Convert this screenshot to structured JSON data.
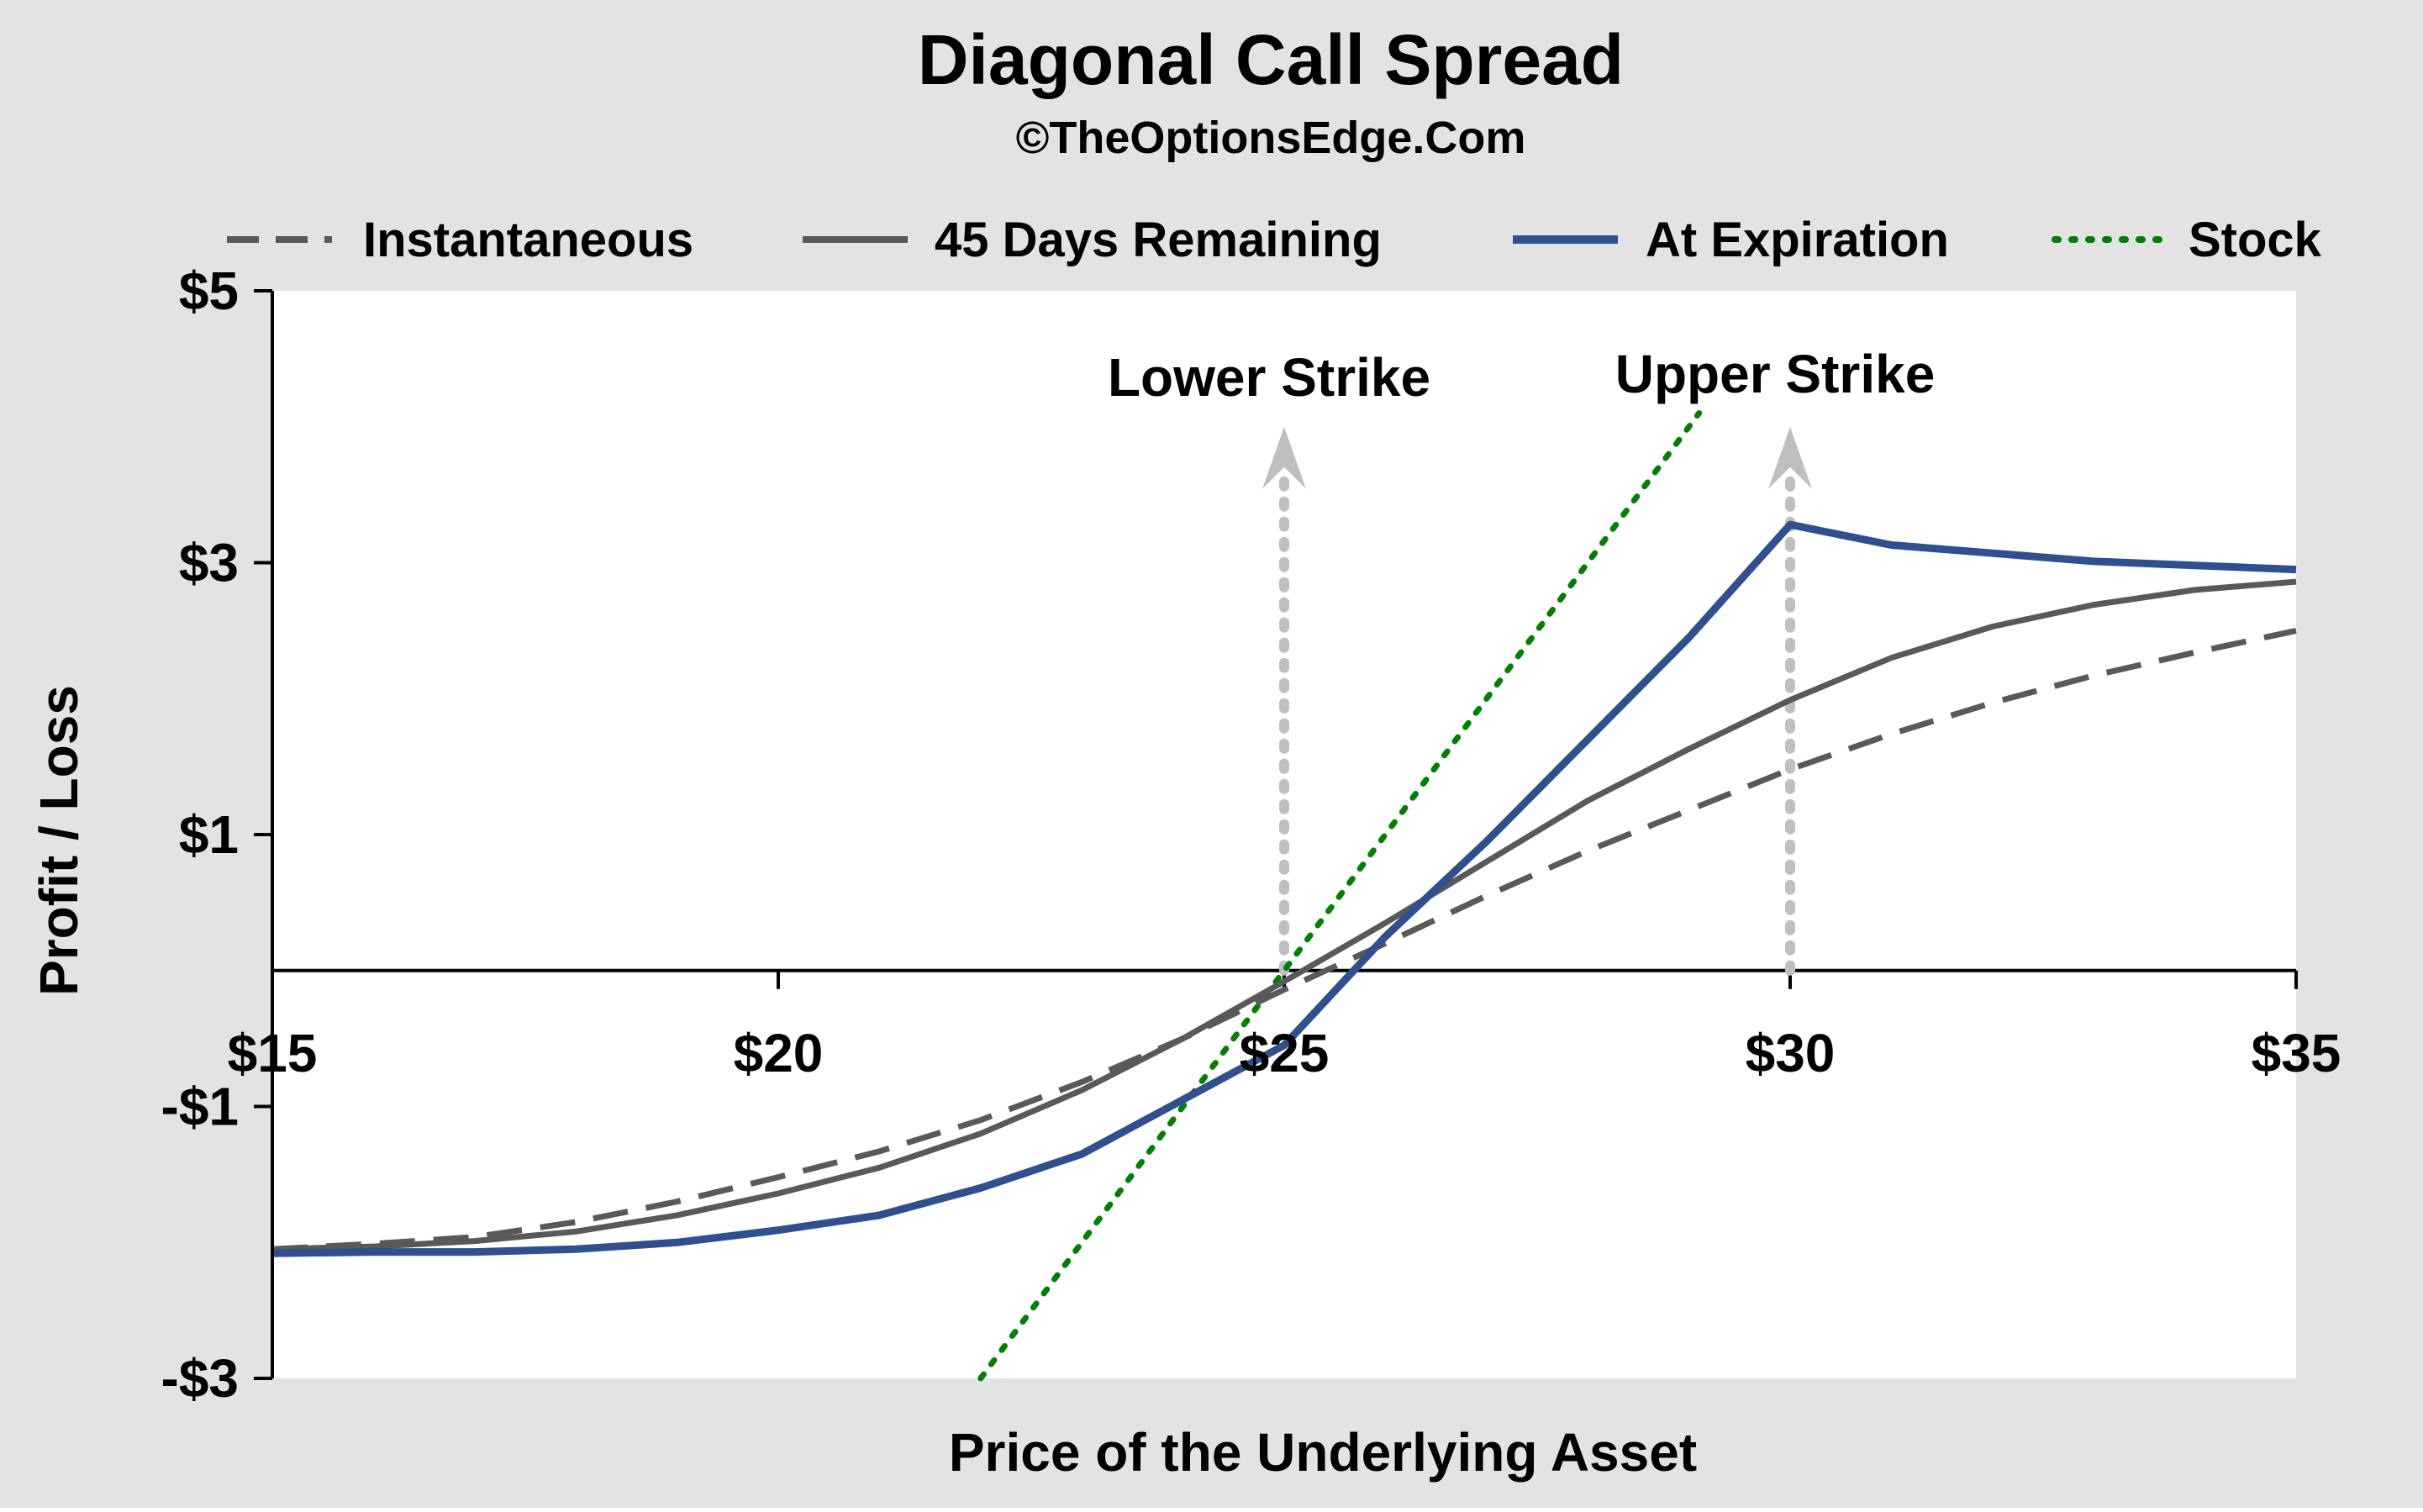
{
  "chart_data": {
    "type": "line",
    "title": "Diagonal Call Spread",
    "subtitle": "©TheOptionsEdge.Com",
    "xlabel": "Price of the Underlying Asset",
    "ylabel": "Profit / Loss",
    "xlim": [
      15,
      35
    ],
    "ylim": [
      -3,
      5
    ],
    "x_ticks": [
      {
        "value": 15,
        "label": "$15"
      },
      {
        "value": 20,
        "label": "$20"
      },
      {
        "value": 25,
        "label": "$25"
      },
      {
        "value": 30,
        "label": "$30"
      },
      {
        "value": 35,
        "label": "$35"
      }
    ],
    "y_ticks": [
      {
        "value": 5,
        "label": "$5"
      },
      {
        "value": 3,
        "label": "$3"
      },
      {
        "value": 1,
        "label": "$1"
      },
      {
        "value": -1,
        "label": "-$1"
      },
      {
        "value": -3,
        "label": "-$3"
      }
    ],
    "grid": false,
    "legend_position": "top",
    "series": [
      {
        "name": "Instantaneous",
        "style": "dashed",
        "color": "#595959",
        "x": [
          15,
          16,
          17,
          18,
          19,
          20,
          21,
          22,
          23,
          24,
          25,
          26,
          27,
          28,
          29,
          30,
          31,
          32,
          33,
          34,
          35
        ],
        "y": [
          -2.05,
          -2.01,
          -1.96,
          -1.85,
          -1.7,
          -1.52,
          -1.33,
          -1.1,
          -0.82,
          -0.5,
          -0.14,
          0.2,
          0.55,
          0.88,
          1.18,
          1.48,
          1.74,
          1.97,
          2.17,
          2.34,
          2.5
        ]
      },
      {
        "name": "45 Days Remaining",
        "style": "solid",
        "color": "#595959",
        "x": [
          15,
          16,
          17,
          18,
          19,
          20,
          21,
          22,
          23,
          24,
          25,
          26,
          27,
          28,
          29,
          30,
          31,
          32,
          33,
          34,
          35
        ],
        "y": [
          -2.05,
          -2.03,
          -1.99,
          -1.92,
          -1.8,
          -1.64,
          -1.45,
          -1.2,
          -0.88,
          -0.5,
          -0.08,
          0.35,
          0.8,
          1.25,
          1.63,
          1.99,
          2.3,
          2.53,
          2.69,
          2.8,
          2.86
        ]
      },
      {
        "name": "At Expiration",
        "style": "solid",
        "color": "#2F4F8F",
        "x": [
          15,
          16,
          17,
          18,
          19,
          20,
          21,
          22,
          23,
          24,
          25,
          26,
          27,
          28,
          29,
          30,
          31,
          32,
          33,
          34,
          35
        ],
        "y": [
          -2.08,
          -2.07,
          -2.07,
          -2.05,
          -2.0,
          -1.91,
          -1.8,
          -1.6,
          -1.35,
          -0.95,
          -0.55,
          0.25,
          0.95,
          1.7,
          2.45,
          3.28,
          3.13,
          3.07,
          3.01,
          2.98,
          2.95
        ]
      },
      {
        "name": "Stock",
        "style": "dotted",
        "color": "#008000",
        "x": [
          22,
          29.1
        ],
        "y": [
          -3,
          4.1
        ]
      }
    ],
    "annotations": [
      {
        "text": "Lower Strike",
        "x": 25
      },
      {
        "text": "Upper Strike",
        "x": 30
      }
    ]
  }
}
